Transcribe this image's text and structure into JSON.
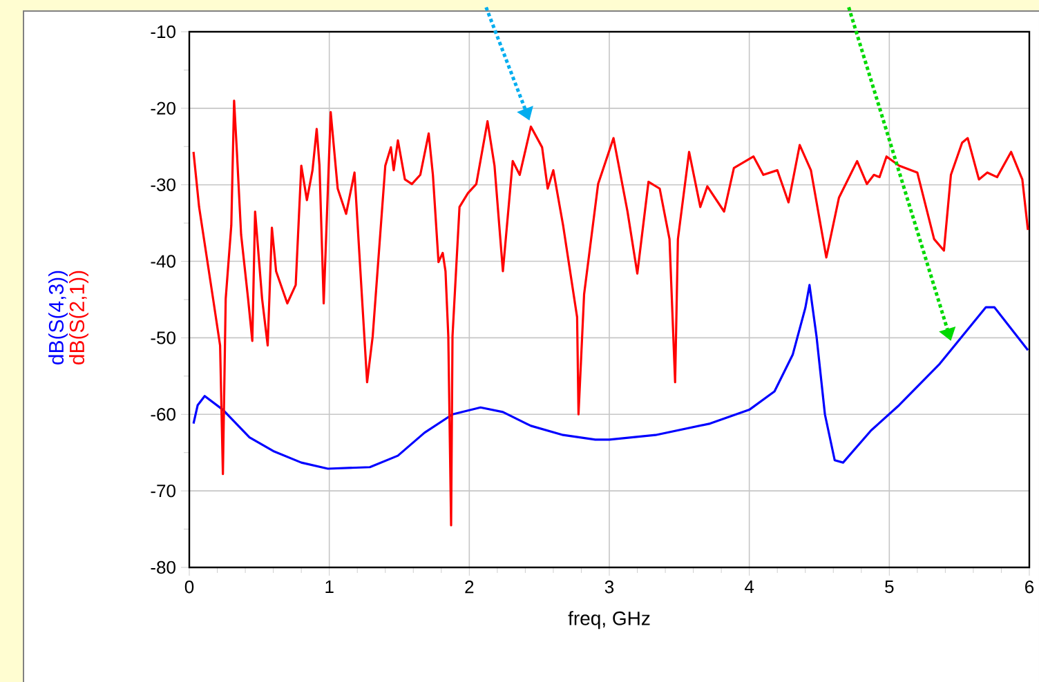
{
  "chart_data": {
    "type": "line",
    "xlabel": "freq, GHz",
    "xlim": [
      0,
      6
    ],
    "ylim": [
      -80,
      -10
    ],
    "xticks": [
      0,
      1,
      2,
      3,
      4,
      5,
      6
    ],
    "yticks": [
      -80,
      -70,
      -60,
      -50,
      -40,
      -30,
      -20,
      -10
    ],
    "grid": true,
    "line_style": "solid",
    "series": [
      {
        "name": "dB(S(4,3))",
        "color": "#0000ff",
        "x": [
          0.03,
          0.06,
          0.11,
          0.24,
          0.43,
          0.6,
          0.8,
          0.99,
          1.29,
          1.49,
          1.68,
          1.88,
          2.08,
          2.24,
          2.44,
          2.67,
          2.9,
          3.0,
          3.33,
          3.72,
          4.0,
          4.18,
          4.31,
          4.4,
          4.43,
          4.48,
          4.54,
          4.61,
          4.67,
          4.87,
          5.07,
          5.36,
          5.52,
          5.69,
          5.75,
          5.99
        ],
        "values": [
          -61.2,
          -58.8,
          -57.6,
          -59.4,
          -63,
          -64.8,
          -66.3,
          -67.1,
          -66.9,
          -65.4,
          -62.4,
          -60,
          -59.1,
          -59.7,
          -61.5,
          -62.7,
          -63.3,
          -63.3,
          -62.7,
          -61.2,
          -59.4,
          -57,
          -52.2,
          -46.1,
          -43.1,
          -49.8,
          -60,
          -66,
          -66.3,
          -62.1,
          -58.8,
          -53.4,
          -49.8,
          -46,
          -46,
          -51.6
        ]
      },
      {
        "name": "dB(S(2,1))",
        "color": "#ff0000",
        "x": [
          0.03,
          0.07,
          0.17,
          0.22,
          0.24,
          0.26,
          0.3,
          0.32,
          0.34,
          0.37,
          0.42,
          0.45,
          0.47,
          0.52,
          0.56,
          0.59,
          0.62,
          0.7,
          0.76,
          0.8,
          0.84,
          0.88,
          0.91,
          0.93,
          0.96,
          1.01,
          1.06,
          1.12,
          1.18,
          1.24,
          1.27,
          1.31,
          1.4,
          1.44,
          1.46,
          1.49,
          1.54,
          1.59,
          1.65,
          1.71,
          1.74,
          1.78,
          1.81,
          1.83,
          1.85,
          1.87,
          1.88,
          1.93,
          1.99,
          2.05,
          2.13,
          2.18,
          2.24,
          2.31,
          2.36,
          2.44,
          2.52,
          2.56,
          2.6,
          2.67,
          2.77,
          2.78,
          2.82,
          2.92,
          3.03,
          3.13,
          3.2,
          3.28,
          3.36,
          3.43,
          3.47,
          3.49,
          3.57,
          3.65,
          3.7,
          3.82,
          3.89,
          4.03,
          4.1,
          4.2,
          4.28,
          4.36,
          4.44,
          4.55,
          4.64,
          4.77,
          4.84,
          4.89,
          4.93,
          4.98,
          5.07,
          5.2,
          5.32,
          5.39,
          5.44,
          5.52,
          5.56,
          5.64,
          5.7,
          5.77,
          5.87,
          5.95,
          5.99
        ],
        "values": [
          -25.7,
          -32.9,
          -44.9,
          -51,
          -67.8,
          -44.9,
          -35.3,
          -19,
          -25.7,
          -36.5,
          -44.9,
          -50.4,
          -33.5,
          -44.9,
          -51,
          -35.6,
          -41.3,
          -45.5,
          -43.1,
          -27.5,
          -32,
          -28.1,
          -22.7,
          -27.5,
          -45.5,
          -20.5,
          -30.5,
          -33.8,
          -28.4,
          -46.7,
          -55.8,
          -49.8,
          -27.5,
          -25.1,
          -28.1,
          -24.2,
          -29.3,
          -29.9,
          -28.7,
          -23.3,
          -28.7,
          -40.1,
          -38.9,
          -41.3,
          -49.8,
          -74.5,
          -49.8,
          -32.9,
          -31.1,
          -29.9,
          -21.7,
          -27.5,
          -41.3,
          -26.9,
          -28.7,
          -22.4,
          -25.1,
          -30.5,
          -28.1,
          -35.3,
          -47.3,
          -60,
          -44.3,
          -29.9,
          -23.9,
          -33.5,
          -41.6,
          -29.6,
          -30.5,
          -37.1,
          -55.8,
          -37.1,
          -25.7,
          -32.9,
          -30.2,
          -33.5,
          -27.8,
          -26.3,
          -28.7,
          -28.1,
          -32.3,
          -24.8,
          -28.1,
          -39.5,
          -31.7,
          -26.9,
          -29.9,
          -28.7,
          -29,
          -26.3,
          -27.5,
          -28.4,
          -37.1,
          -38.6,
          -28.7,
          -24.5,
          -23.9,
          -29.3,
          -28.4,
          -29,
          -25.7,
          -29.3,
          -35.9
        ]
      }
    ]
  }
}
